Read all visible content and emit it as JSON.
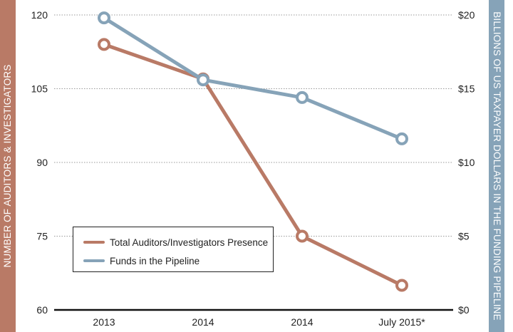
{
  "chart_data": {
    "type": "line",
    "categories": [
      "2013",
      "2014",
      "2014",
      "July 2015*"
    ],
    "y_left": {
      "label": "NUMBER OF AUDITORS & INVESTIGATORS",
      "range": [
        60,
        120
      ],
      "ticks": [
        "60",
        "75",
        "90",
        "105",
        "120"
      ],
      "tick_values": [
        60,
        75,
        90,
        105,
        120
      ]
    },
    "y_right": {
      "label": "BILLIONS OF US TAXPAYER DOLLARS IN THE FUNDING PIPELINE",
      "range": [
        0,
        20
      ],
      "ticks": [
        "$0",
        "$5",
        "$10",
        "$15",
        "$20"
      ],
      "tick_values": [
        0,
        5,
        10,
        15,
        20
      ]
    },
    "series": [
      {
        "name": "Total Auditors/Investigators Presence",
        "axis": "left",
        "color": "#b97a66",
        "values": [
          114,
          107,
          75,
          65
        ]
      },
      {
        "name": "Funds in the Pipeline",
        "axis": "right",
        "color": "#86a3b8",
        "values": [
          19.8,
          15.6,
          14.4,
          11.6
        ]
      }
    ],
    "grid": true,
    "legend_position": "bottom-left"
  },
  "colors": {
    "left_band": "#b97a66",
    "right_band": "#86a3b8",
    "grid": "#9a9a9a",
    "baseline": "#111111",
    "text": "#222222"
  }
}
